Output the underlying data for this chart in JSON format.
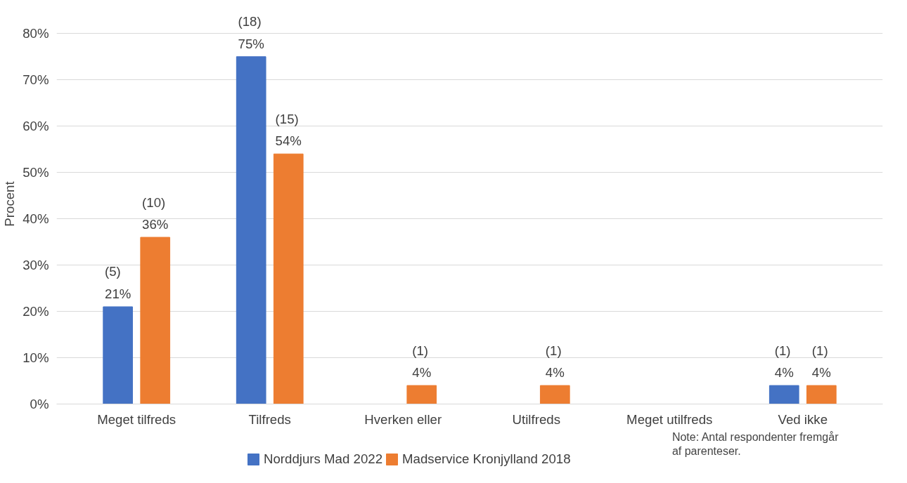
{
  "chart_data": {
    "type": "bar",
    "ylabel": "Procent",
    "categories": [
      "Meget tilfreds",
      "Tilfreds",
      "Hverken eller",
      "Utilfreds",
      "Meget utilfreds",
      "Ved ikke"
    ],
    "series": [
      {
        "name": "Norddjurs Mad 2022",
        "color": "#4472c4",
        "values": [
          21,
          75,
          0,
          0,
          0,
          4
        ],
        "value_labels": [
          "(5)\n21%",
          "(18)\n75%",
          null,
          null,
          null,
          "(1)\n4%"
        ]
      },
      {
        "name": "Madservice Kronjylland 2018",
        "color": "#ed7d31",
        "values": [
          36,
          54,
          4,
          4,
          0,
          4
        ],
        "value_labels": [
          "(10)\n36%",
          "(15)\n54%",
          "(1)\n4%",
          "(1)\n4%",
          null,
          "(1)\n4%"
        ]
      }
    ],
    "ylim": [
      0,
      80
    ],
    "yticks": [
      {
        "value": 0,
        "label": "0%"
      },
      {
        "value": 10,
        "label": "10%"
      },
      {
        "value": 20,
        "label": "20%"
      },
      {
        "value": 30,
        "label": "30%"
      },
      {
        "value": 40,
        "label": "40%"
      },
      {
        "value": 50,
        "label": "50%"
      },
      {
        "value": 60,
        "label": "60%"
      },
      {
        "value": 70,
        "label": "70%"
      },
      {
        "value": 80,
        "label": "80%"
      }
    ],
    "grid": "y",
    "legend": "bottom",
    "annotations": [
      "Note: Antal respondenter fremgår af parenteser."
    ]
  }
}
